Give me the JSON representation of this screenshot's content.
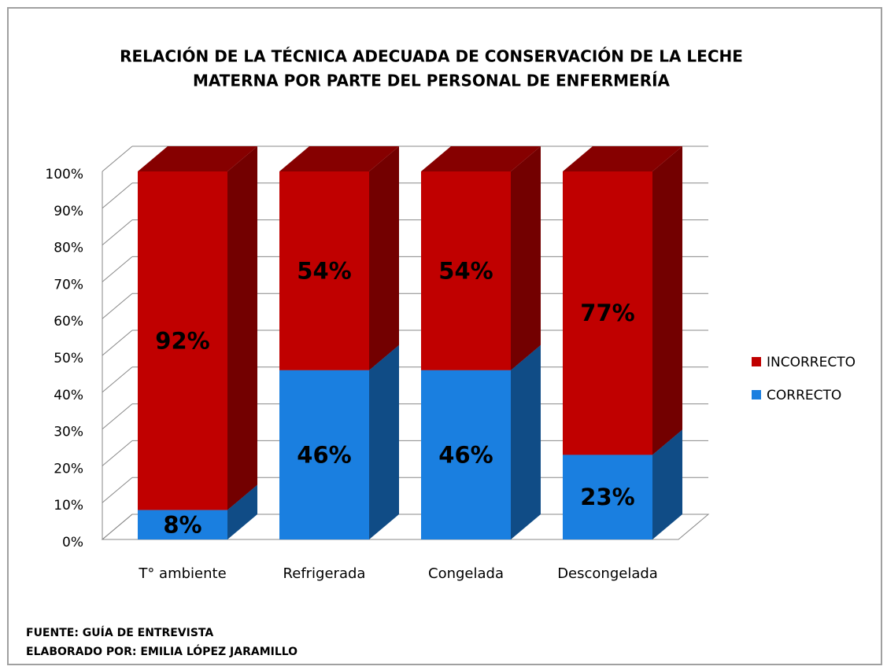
{
  "chart_data": {
    "type": "bar3d_stacked",
    "title": [
      "RELACIÓN DE LA TÉCNICA ADECUADA DE CONSERVACIÓN DE  LA LECHE",
      "MATERNA POR PARTE DEL PERSONAL DE ENFERMERÍA"
    ],
    "categories": [
      "T° ambiente",
      "Refrigerada",
      "Congelada",
      "Descongelada"
    ],
    "series": [
      {
        "name": "CORRECTO",
        "color": "#1a7fe0",
        "values": [
          8,
          46,
          46,
          23
        ],
        "value_labels": [
          "8%",
          "46%",
          "46%",
          "23%"
        ]
      },
      {
        "name": "INCORRECTO",
        "color": "#c00000",
        "values": [
          92,
          54,
          54,
          77
        ],
        "value_labels": [
          "92%",
          "54%",
          "54%",
          "77%"
        ]
      }
    ],
    "ylim": [
      0,
      100
    ],
    "yticks": [
      {
        "value": 0,
        "label": "0%"
      },
      {
        "value": 10,
        "label": "10%"
      },
      {
        "value": 20,
        "label": "20%"
      },
      {
        "value": 30,
        "label": "30%"
      },
      {
        "value": 40,
        "label": "40%"
      },
      {
        "value": 50,
        "label": "50%"
      },
      {
        "value": 60,
        "label": "60%"
      },
      {
        "value": 70,
        "label": "70%"
      },
      {
        "value": 80,
        "label": "80%"
      },
      {
        "value": 90,
        "label": "90%"
      },
      {
        "value": 100,
        "label": "100%"
      }
    ],
    "grid": true,
    "legend": "right",
    "source": "FUENTE: GUÍA DE ENTREVISTA",
    "credit": "ELABORADO POR: EMILIA LÓPEZ JARAMILLO"
  }
}
